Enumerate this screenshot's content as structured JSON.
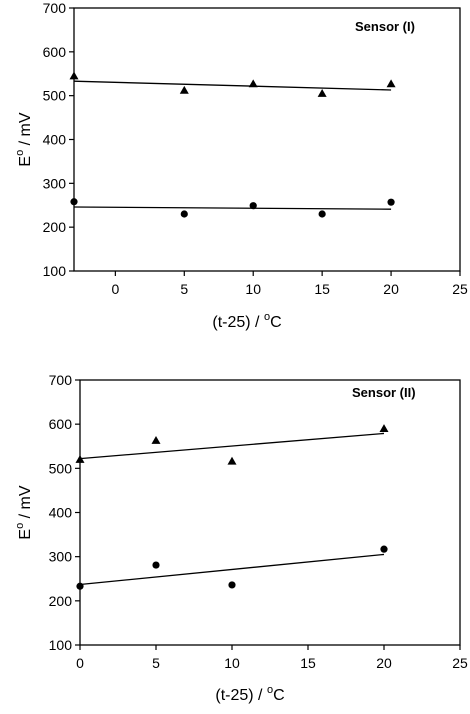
{
  "chart_data": [
    {
      "type": "scatter",
      "annotation": "Sensor (I)",
      "xlabel": {
        "pre": "(t-25) / ",
        "sup": "o",
        "post": "C"
      },
      "ylabel": {
        "pre": "E",
        "sup": "o",
        "post": " / mV"
      },
      "xlim": [
        -3,
        25
      ],
      "ylim": [
        100,
        700
      ],
      "xticks": [
        0,
        5,
        10,
        15,
        20,
        25
      ],
      "yticks": [
        100,
        200,
        300,
        400,
        500,
        600,
        700
      ],
      "grid": false,
      "series": [
        {
          "marker": "triangle",
          "x": [
            -3,
            5,
            10,
            15,
            20
          ],
          "y": [
            545,
            512,
            527,
            505,
            527
          ],
          "fit": {
            "x": [
              -3,
              20
            ],
            "y": [
              533,
              513
            ]
          }
        },
        {
          "marker": "circle",
          "x": [
            -3,
            5,
            10,
            15,
            20
          ],
          "y": [
            258,
            230,
            249,
            230,
            257
          ],
          "fit": {
            "x": [
              -3,
              20
            ],
            "y": [
              246,
              241
            ]
          }
        }
      ]
    },
    {
      "type": "scatter",
      "annotation": "Sensor (II)",
      "xlabel": {
        "pre": "(t-25) / ",
        "sup": "o",
        "post": "C"
      },
      "ylabel": {
        "pre": "E",
        "sup": "o",
        "post": " / mV"
      },
      "xlim": [
        0,
        25
      ],
      "ylim": [
        100,
        700
      ],
      "xticks": [
        0,
        5,
        10,
        15,
        20,
        25
      ],
      "yticks": [
        100,
        200,
        300,
        400,
        500,
        600,
        700
      ],
      "grid": false,
      "series": [
        {
          "marker": "triangle",
          "x": [
            0,
            5,
            10,
            20
          ],
          "y": [
            520,
            563,
            516,
            590
          ],
          "fit": {
            "x": [
              0,
              20
            ],
            "y": [
              522,
              579
            ]
          }
        },
        {
          "marker": "circle",
          "x": [
            0,
            5,
            10,
            20
          ],
          "y": [
            233,
            281,
            236,
            317
          ],
          "fit": {
            "x": [
              0,
              20
            ],
            "y": [
              237,
              305
            ]
          }
        }
      ]
    }
  ]
}
